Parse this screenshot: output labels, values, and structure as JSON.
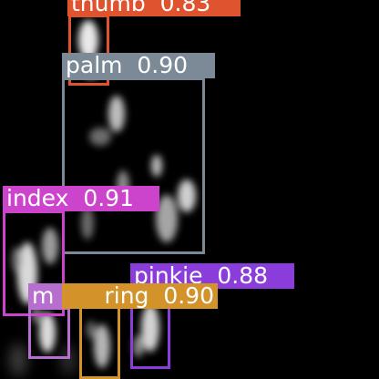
{
  "image": {
    "description_kind": "hand-part-detection",
    "background": "#000000"
  },
  "detections": [
    {
      "id": "thumb",
      "label": "thumb",
      "score": "0.83",
      "color": "#e0532f",
      "text_color": "#ffffff"
    },
    {
      "id": "palm",
      "label": "palm",
      "score": "0.90",
      "color": "#7b8a96",
      "text_color": "#ffffff"
    },
    {
      "id": "index",
      "label": "index",
      "score": "0.91",
      "color": "#cc44cc",
      "text_color": "#ffffff"
    },
    {
      "id": "pinkie",
      "label": "pinkie",
      "score": "0.88",
      "color": "#8a3ddb",
      "text_color": "#ffffff"
    },
    {
      "id": "ring",
      "label": "ring",
      "score": "0.90",
      "color": "#d4922a",
      "text_color": "#ffffff"
    },
    {
      "id": "middle",
      "label": "m",
      "score": "",
      "color": "#b76fcf",
      "text_color": "#ffffff"
    }
  ]
}
